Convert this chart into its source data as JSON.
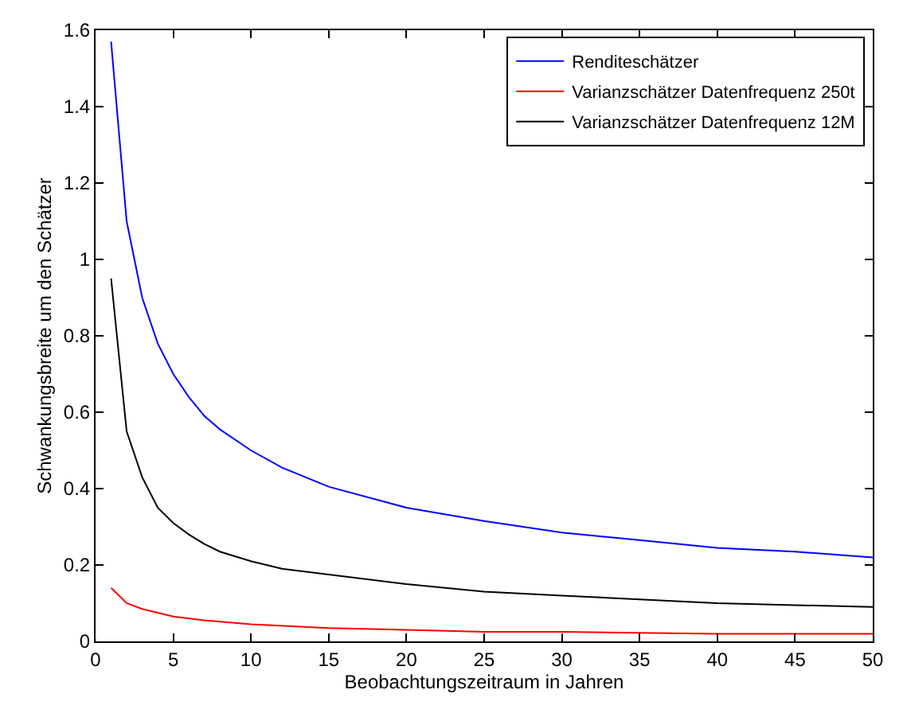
{
  "chart_data": {
    "type": "line",
    "xlabel": "Beobachtungszeitraum in Jahren",
    "ylabel": "Schwankungsbreite um den Schätzer",
    "xlim": [
      0,
      50
    ],
    "ylim": [
      0,
      1.6
    ],
    "xticks": [
      0,
      5,
      10,
      15,
      20,
      25,
      30,
      35,
      40,
      45,
      50
    ],
    "yticks": [
      0,
      0.2,
      0.4,
      0.6,
      0.8,
      1,
      1.2,
      1.4,
      1.6
    ],
    "legend": "top right",
    "marker": "none",
    "line_style": "solid",
    "series": [
      {
        "name": "Renditeschätzer",
        "color": "#0000ff",
        "x": [
          1,
          2,
          3,
          4,
          5,
          6,
          7,
          8,
          10,
          12,
          15,
          20,
          25,
          30,
          35,
          40,
          45,
          50
        ],
        "values": [
          1.57,
          1.1,
          0.9,
          0.78,
          0.7,
          0.64,
          0.59,
          0.555,
          0.5,
          0.455,
          0.405,
          0.35,
          0.315,
          0.285,
          0.265,
          0.245,
          0.235,
          0.22
        ]
      },
      {
        "name": "Varianzschätzer Datenfrequenz 250t",
        "color": "#ff0000",
        "x": [
          1,
          2,
          3,
          4,
          5,
          7,
          10,
          15,
          20,
          25,
          30,
          40,
          50
        ],
        "values": [
          0.14,
          0.1,
          0.085,
          0.075,
          0.065,
          0.055,
          0.045,
          0.035,
          0.03,
          0.025,
          0.025,
          0.02,
          0.02
        ]
      },
      {
        "name": "Varianzschätzer Datenfrequenz 12M",
        "color": "#000000",
        "x": [
          1,
          2,
          3,
          4,
          5,
          6,
          7,
          8,
          10,
          12,
          15,
          20,
          25,
          30,
          35,
          40,
          45,
          50
        ],
        "values": [
          0.95,
          0.55,
          0.43,
          0.35,
          0.31,
          0.28,
          0.255,
          0.235,
          0.21,
          0.19,
          0.175,
          0.15,
          0.13,
          0.12,
          0.11,
          0.1,
          0.095,
          0.09
        ]
      }
    ]
  }
}
